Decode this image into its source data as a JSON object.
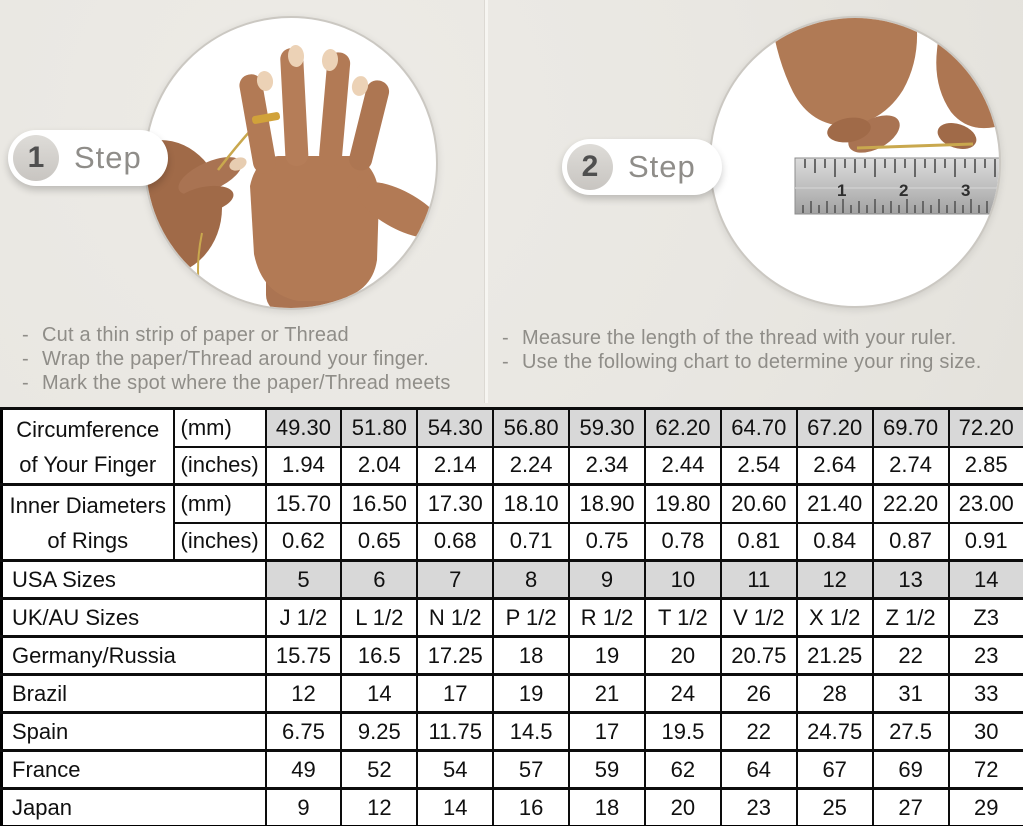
{
  "page_title": "Ring size measuring guide",
  "bullet_char": "-",
  "colors": {
    "background": "#eae8e3",
    "table_shaded_cell": "#d8d8d8",
    "instruction_text": "#8f8d88",
    "table_border": "#000000",
    "thread_gold": "#c9a84e"
  },
  "steps": [
    {
      "number": "1",
      "label": "Step",
      "photo": "hand-with-ring-and-thread",
      "notes": [
        "Cut a thin strip of paper or Thread",
        "Wrap the paper/Thread around your finger.",
        "Mark the spot where the paper/Thread meets"
      ]
    },
    {
      "number": "2",
      "label": "Step",
      "photo": "measuring-thread-with-ruler",
      "ruler_marks": [
        "1",
        "2",
        "3"
      ],
      "notes": [
        "Measure the length of the thread with your ruler.",
        "Use the following chart to determine your ring size."
      ]
    }
  ],
  "table": {
    "rows": [
      {
        "group": "Circumference of Your Finger",
        "group_rowspan": 2,
        "unit": "(mm)",
        "shaded": true,
        "values": [
          "49.30",
          "51.80",
          "54.30",
          "56.80",
          "59.30",
          "62.20",
          "64.70",
          "67.20",
          "69.70",
          "72.20"
        ]
      },
      {
        "unit": "(inches)",
        "values": [
          "1.94",
          "2.04",
          "2.14",
          "2.24",
          "2.34",
          "2.44",
          "2.54",
          "2.64",
          "2.74",
          "2.85"
        ]
      },
      {
        "group": "Inner Diameters of Rings",
        "group_rowspan": 2,
        "unit": "(mm)",
        "values": [
          "15.70",
          "16.50",
          "17.30",
          "18.10",
          "18.90",
          "19.80",
          "20.60",
          "21.40",
          "22.20",
          "23.00"
        ]
      },
      {
        "unit": "(inches)",
        "values": [
          "0.62",
          "0.65",
          "0.68",
          "0.71",
          "0.75",
          "0.78",
          "0.81",
          "0.84",
          "0.87",
          "0.91"
        ]
      },
      {
        "label": "USA Sizes",
        "shaded": true,
        "values": [
          "5",
          "6",
          "7",
          "8",
          "9",
          "10",
          "11",
          "12",
          "13",
          "14"
        ]
      },
      {
        "label": "UK/AU Sizes",
        "values": [
          "J 1/2",
          "L 1/2",
          "N 1/2",
          "P 1/2",
          "R 1/2",
          "T 1/2",
          "V 1/2",
          "X 1/2",
          "Z 1/2",
          "Z3"
        ]
      },
      {
        "label": "Germany/Russia",
        "values": [
          "15.75",
          "16.5",
          "17.25",
          "18",
          "19",
          "20",
          "20.75",
          "21.25",
          "22",
          "23"
        ]
      },
      {
        "label": "Brazil",
        "values": [
          "12",
          "14",
          "17",
          "19",
          "21",
          "24",
          "26",
          "28",
          "31",
          "33"
        ]
      },
      {
        "label": "Spain",
        "values": [
          "6.75",
          "9.25",
          "11.75",
          "14.5",
          "17",
          "19.5",
          "22",
          "24.75",
          "27.5",
          "30"
        ]
      },
      {
        "label": "France",
        "values": [
          "49",
          "52",
          "54",
          "57",
          "59",
          "62",
          "64",
          "67",
          "69",
          "72"
        ]
      },
      {
        "label": "Japan",
        "values": [
          "9",
          "12",
          "14",
          "16",
          "18",
          "20",
          "23",
          "25",
          "27",
          "29"
        ]
      }
    ]
  }
}
